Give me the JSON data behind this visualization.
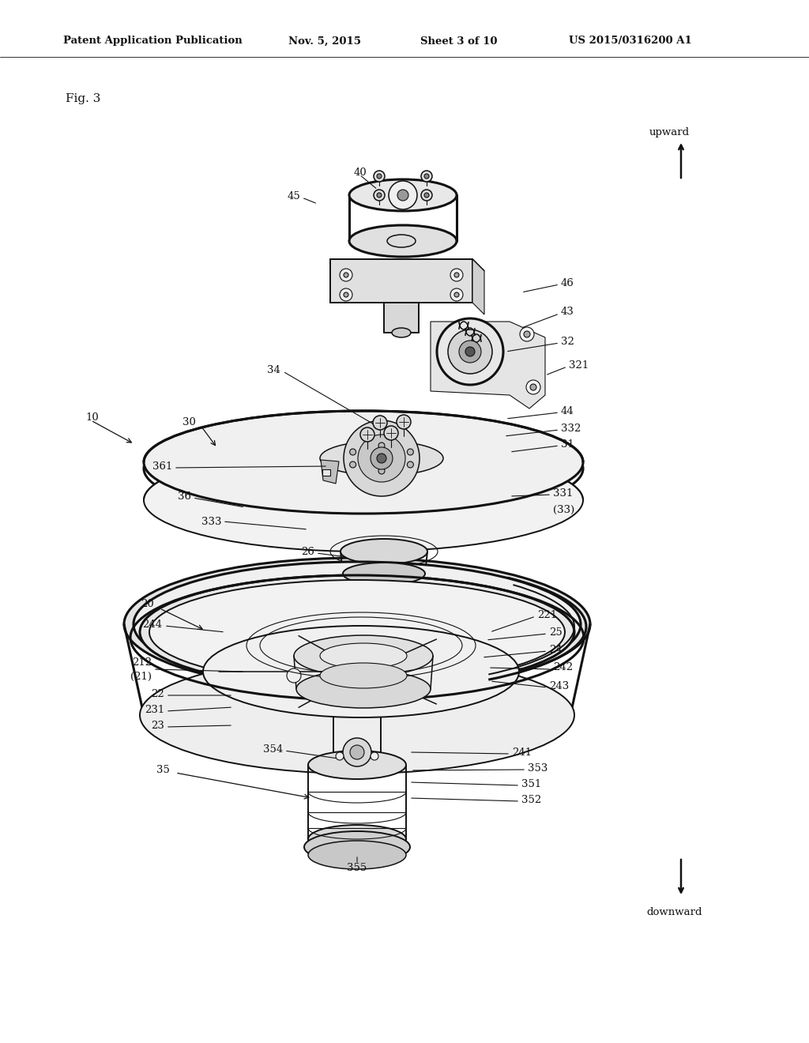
{
  "background_color": "#ffffff",
  "fig_width": 10.24,
  "fig_height": 13.2,
  "header_text": "Patent Application Publication",
  "header_date": "Nov. 5, 2015",
  "header_sheet": "Sheet 3 of 10",
  "header_patent": "US 2015/0316200 A1",
  "fig_label": "Fig. 3",
  "direction_up": "upward",
  "direction_down": "downward",
  "line_color": "#111111",
  "lw_main": 1.4,
  "lw_thick": 2.2,
  "lw_thin": 0.8,
  "lw_med": 1.1
}
